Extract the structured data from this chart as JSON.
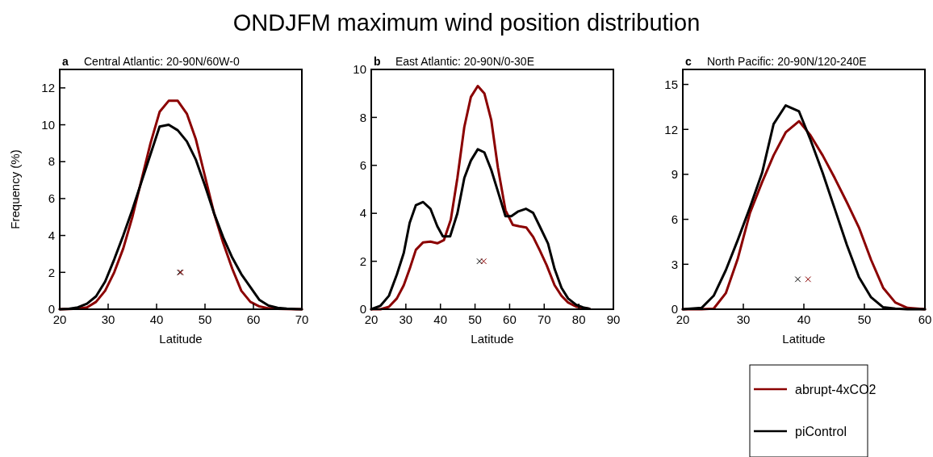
{
  "chart_data": [
    {
      "type": "line",
      "title": "Central Atlantic: 20-90N/60W-0",
      "annotations": [
        "a",
        "ONDJFM maximum wind position distribution"
      ],
      "xlabel": "Latitude",
      "ylabel": "Frequency (%)",
      "xlim": [
        20,
        70
      ],
      "xticks": [
        20,
        30,
        40,
        50,
        60,
        70
      ],
      "ylim": [
        0,
        13
      ],
      "yticks": [
        0,
        2,
        4,
        6,
        8,
        10,
        12
      ],
      "grid": false,
      "legend": false,
      "series": [
        {
          "color": "#8b0000",
          "x": [
            20,
            21.875,
            23.75,
            25.625,
            27.5,
            29.375,
            31.25,
            33.125,
            35,
            36.875,
            38.75,
            40.625,
            42.5,
            44.375,
            46.25,
            48.125,
            50,
            51.875,
            53.75,
            55.625,
            57.5,
            59.375,
            61.25,
            63.125,
            65,
            66.875,
            68.75,
            70
          ],
          "values": [
            0,
            0.01,
            0.03,
            0.1,
            0.4,
            1.0,
            2.0,
            3.3,
            5.0,
            7.0,
            9.0,
            10.7,
            11.3,
            11.3,
            10.6,
            9.2,
            7.2,
            5.2,
            3.6,
            2.2,
            1.0,
            0.4,
            0.15,
            0.05,
            0.02,
            0.01,
            0,
            0
          ]
        },
        {
          "color": "#000000",
          "x": [
            20,
            21.875,
            23.75,
            25.625,
            27.5,
            29.375,
            31.25,
            33.125,
            35,
            36.875,
            38.75,
            40.625,
            42.5,
            44.375,
            46.25,
            48.125,
            50,
            51.875,
            53.75,
            55.625,
            57.5,
            59.375,
            61.25,
            63.125,
            65,
            66.875,
            68.75,
            70
          ],
          "values": [
            0,
            0.02,
            0.1,
            0.3,
            0.7,
            1.5,
            2.7,
            4.0,
            5.4,
            6.9,
            8.4,
            9.9,
            10.0,
            9.7,
            9.1,
            8.1,
            6.7,
            5.2,
            3.9,
            2.8,
            1.9,
            1.2,
            0.5,
            0.2,
            0.08,
            0.03,
            0.01,
            0
          ]
        },
        {
          "type": "scatter",
          "marker": "cross",
          "color": "#000000",
          "x": [
            44.8
          ],
          "values": [
            2
          ]
        },
        {
          "type": "scatter",
          "marker": "cross",
          "color": "#8b0000",
          "x": [
            45
          ],
          "values": [
            2
          ]
        }
      ]
    },
    {
      "type": "line",
      "title": "East Atlantic: 20-90N/0-30E",
      "annotations": [
        "b"
      ],
      "xlabel": "Latitude",
      "xlim": [
        20,
        90
      ],
      "xticks": [
        20,
        30,
        40,
        50,
        60,
        70,
        80,
        90
      ],
      "ylim": [
        0,
        10
      ],
      "yticks": [
        0,
        2,
        4,
        6,
        8,
        10
      ],
      "grid": false,
      "legend": false,
      "series": [
        {
          "color": "#8b0000",
          "x": [
            20,
            22.7,
            25.1,
            27.4,
            29.4,
            31.1,
            32.9,
            35,
            37.1,
            39.1,
            41,
            43,
            44.9,
            46.9,
            48.8,
            50.8,
            52.7,
            54.7,
            56.6,
            58.8,
            60.9,
            62.8,
            64.8,
            66.8,
            68.7,
            70.7,
            73,
            75,
            76.9,
            79.2,
            81.2,
            83.1
          ],
          "values": [
            0,
            0,
            0.1,
            0.45,
            1.0,
            1.68,
            2.48,
            2.79,
            2.82,
            2.75,
            2.88,
            3.74,
            5.47,
            7.6,
            8.85,
            9.31,
            9.0,
            7.88,
            5.92,
            4.13,
            3.52,
            3.46,
            3.41,
            3.02,
            2.46,
            1.84,
            1.0,
            0.56,
            0.28,
            0.11,
            0.06,
            0.02
          ]
        },
        {
          "color": "#000000",
          "x": [
            20,
            22.7,
            25.1,
            27.4,
            29.4,
            31.1,
            32.9,
            35,
            37.1,
            39.1,
            40.7,
            42.8,
            44.9,
            46.9,
            48.8,
            50.8,
            52.7,
            54.7,
            56.6,
            58.8,
            60.5,
            62.5,
            64.7,
            66.8,
            68.7,
            71.1,
            73,
            75,
            76.9,
            79.2,
            81.2,
            83.1
          ],
          "values": [
            0,
            0.15,
            0.56,
            1.45,
            2.35,
            3.6,
            4.34,
            4.47,
            4.19,
            3.46,
            3.04,
            3.04,
            4.0,
            5.47,
            6.2,
            6.67,
            6.54,
            5.81,
            4.92,
            3.88,
            3.88,
            4.08,
            4.19,
            4.02,
            3.46,
            2.74,
            1.68,
            0.89,
            0.45,
            0.19,
            0.08,
            0.02
          ]
        },
        {
          "type": "scatter",
          "marker": "cross",
          "color": "#000000",
          "x": [
            51.3
          ],
          "values": [
            2
          ]
        },
        {
          "type": "scatter",
          "marker": "cross",
          "color": "#8b0000",
          "x": [
            52.5
          ],
          "values": [
            2
          ]
        }
      ]
    },
    {
      "type": "line",
      "title": "North Pacific: 20-90N/120-240E",
      "annotations": [
        "c"
      ],
      "xlabel": "Latitude",
      "xlim": [
        20,
        60
      ],
      "xticks": [
        20,
        30,
        40,
        50,
        60
      ],
      "ylim": [
        0,
        16
      ],
      "yticks": [
        0,
        3,
        6,
        9,
        12,
        15
      ],
      "grid": false,
      "legend": "bottom right",
      "series": [
        {
          "name": "abrupt-4xCO2",
          "color": "#8b0000",
          "x": [
            20,
            23.1,
            25.1,
            27.1,
            29.1,
            31.1,
            33.1,
            35,
            37,
            39.2,
            41.1,
            43.1,
            45.1,
            47.1,
            49.1,
            51.1,
            53.1,
            55.1,
            57.1,
            60
          ],
          "values": [
            0,
            0,
            0.04,
            1.07,
            3.4,
            6.43,
            8.48,
            10.27,
            11.8,
            12.55,
            11.6,
            10.27,
            8.75,
            7.14,
            5.45,
            3.3,
            1.43,
            0.45,
            0.09,
            0
          ]
        },
        {
          "name": "piControl",
          "color": "#000000",
          "x": [
            20,
            23.1,
            25.1,
            27.1,
            29.1,
            31.1,
            33.1,
            35,
            37,
            39.2,
            41.1,
            43.1,
            45.1,
            47.1,
            49.1,
            51.1,
            53.1,
            55.1,
            57.1,
            60
          ],
          "values": [
            0,
            0.09,
            0.9,
            2.6,
            4.64,
            6.8,
            9.1,
            12.36,
            13.6,
            13.2,
            11.3,
            9.1,
            6.7,
            4.3,
            2.14,
            0.8,
            0.13,
            0.04,
            0,
            0
          ]
        },
        {
          "type": "scatter",
          "marker": "cross",
          "color": "#000000",
          "x": [
            39
          ],
          "values": [
            2
          ]
        },
        {
          "type": "scatter",
          "marker": "cross",
          "color": "#8b0000",
          "x": [
            40.7
          ],
          "values": [
            2
          ]
        }
      ]
    }
  ]
}
